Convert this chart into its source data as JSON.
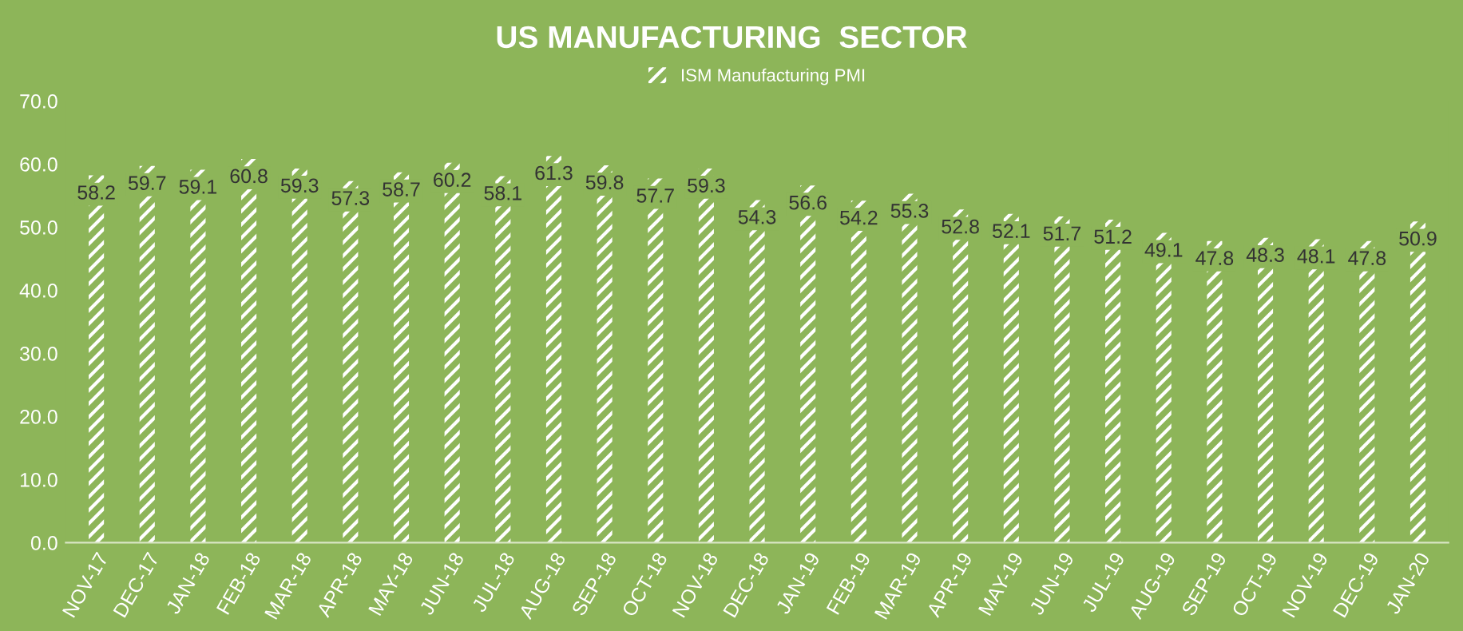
{
  "chart_data": {
    "type": "bar",
    "title": "US MANUFACTURING  SECTOR",
    "categories": [
      "NOV-17",
      "DEC-17",
      "JAN-18",
      "FEB-18",
      "MAR-18",
      "APR-18",
      "MAY-18",
      "JUN-18",
      "JUL-18",
      "AUG-18",
      "SEP-18",
      "OCT-18",
      "NOV-18",
      "DEC-18",
      "JAN-19",
      "FEB-19",
      "MAR-19",
      "APR-19",
      "MAY-19",
      "JUN-19",
      "JUL-19",
      "AUG-19",
      "SEP-19",
      "OCT-19",
      "NOV-19",
      "DEC-19",
      "JAN-20"
    ],
    "series": [
      {
        "name": "ISM Manufacturing PMI",
        "color": "#ffffff",
        "values": [
          58.2,
          59.7,
          59.1,
          60.8,
          59.3,
          57.3,
          58.7,
          60.2,
          58.1,
          61.3,
          59.8,
          57.7,
          59.3,
          54.3,
          56.6,
          54.2,
          55.3,
          52.8,
          52.1,
          51.7,
          51.2,
          49.1,
          47.8,
          48.3,
          48.1,
          47.8,
          50.9
        ]
      }
    ],
    "ylim": [
      0,
      70
    ],
    "yticks": [
      {
        "value": 0,
        "label": "0.0"
      },
      {
        "value": 10,
        "label": "10.0"
      },
      {
        "value": 20,
        "label": "20.0"
      },
      {
        "value": 30,
        "label": "30.0"
      },
      {
        "value": 40,
        "label": "40.0"
      },
      {
        "value": 50,
        "label": "50.0"
      },
      {
        "value": 60,
        "label": "60.0"
      },
      {
        "value": 70,
        "label": "70.0"
      }
    ],
    "grid": false,
    "legend": "top",
    "data_labels": true
  }
}
